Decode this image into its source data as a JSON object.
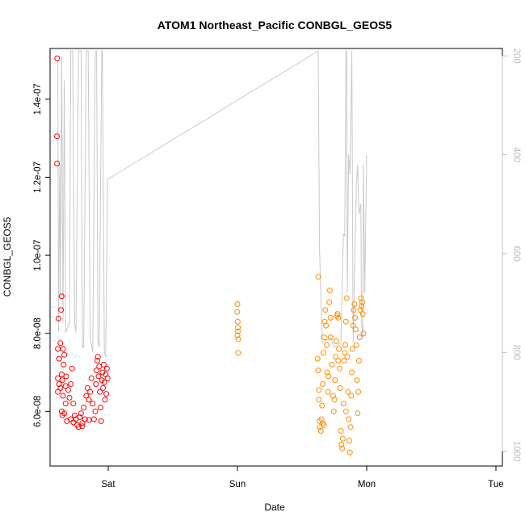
{
  "chart_data": {
    "type": "scatter",
    "title": "ATOM1 Northeast_Pacific CONBGL_GEOS5",
    "xlabel": "Date",
    "ylabel": "CONBGL_GEOS5",
    "x_ticks": [
      "Sat",
      "Sun",
      "Mon",
      "Tue"
    ],
    "x_range_days": [
      -0.45,
      3.05
    ],
    "y_ticks": [
      "6.0e-08",
      "8.0e-08",
      "1.0e-07",
      "1.2e-07",
      "1.4e-07"
    ],
    "y_tick_values": [
      6e-08,
      8e-08,
      1e-07,
      1.2e-07,
      1.4e-07
    ],
    "ylim": [
      4.6e-08,
      1.53e-07
    ],
    "y2_ticks": [
      "200",
      "400",
      "600",
      "800",
      "1000"
    ],
    "y2_tick_values": [
      200,
      400,
      600,
      800,
      1000
    ],
    "y2_lim_top_to_bottom": [
      185,
      1030
    ],
    "colors": {
      "series1": "#ff0000",
      "series2": "#ff8c00",
      "pressure": "#c8c8c8",
      "right_axis": "#bdbdbd"
    },
    "series": [
      {
        "color": "#ff0000",
        "points": [
          [
            -0.395,
            1.505e-07
          ],
          [
            -0.397,
            1.305e-07
          ],
          [
            -0.396,
            1.235e-07
          ],
          [
            -0.36,
            8.95e-08
          ],
          [
            -0.365,
            8.6e-08
          ],
          [
            -0.385,
            8.38e-08
          ],
          [
            -0.39,
            7.6e-08
          ],
          [
            -0.37,
            7.75e-08
          ],
          [
            -0.35,
            7.6e-08
          ],
          [
            -0.38,
            7.35e-08
          ],
          [
            -0.34,
            7.45e-08
          ],
          [
            -0.39,
            6.85e-08
          ],
          [
            -0.38,
            6.7e-08
          ],
          [
            -0.36,
            6.95e-08
          ],
          [
            -0.37,
            6.6e-08
          ],
          [
            -0.39,
            6.5e-08
          ],
          [
            -0.355,
            6.8e-08
          ],
          [
            -0.345,
            7.2e-08
          ],
          [
            -0.35,
            6.4e-08
          ],
          [
            -0.33,
            6.65e-08
          ],
          [
            -0.325,
            6.9e-08
          ],
          [
            -0.36,
            6e-08
          ],
          [
            -0.355,
            5.9e-08
          ],
          [
            -0.34,
            5.95e-08
          ],
          [
            -0.33,
            6.2e-08
          ],
          [
            -0.32,
            5.75e-08
          ],
          [
            -0.31,
            6.55e-08
          ],
          [
            -0.3,
            6.35e-08
          ],
          [
            -0.29,
            6.7e-08
          ],
          [
            -0.28,
            7.1e-08
          ],
          [
            -0.27,
            6.2e-08
          ],
          [
            -0.26,
            5.9e-08
          ],
          [
            -0.25,
            5.8e-08
          ],
          [
            -0.24,
            5.65e-08
          ],
          [
            -0.23,
            5.6e-08
          ],
          [
            -0.22,
            5.85e-08
          ],
          [
            -0.21,
            5.95e-08
          ],
          [
            -0.2,
            5.7e-08
          ],
          [
            -0.19,
            6.1e-08
          ],
          [
            -0.18,
            5.8e-08
          ],
          [
            -0.17,
            6.4e-08
          ],
          [
            -0.16,
            6.6e-08
          ],
          [
            -0.15,
            6.3e-08
          ],
          [
            -0.14,
            6.5e-08
          ],
          [
            -0.13,
            6.85e-08
          ],
          [
            -0.12,
            6.2e-08
          ],
          [
            -0.11,
            5.8e-08
          ],
          [
            -0.1,
            6e-08
          ],
          [
            -0.095,
            6.7e-08
          ],
          [
            -0.09,
            7.05e-08
          ],
          [
            -0.085,
            7.3e-08
          ],
          [
            -0.08,
            7.4e-08
          ],
          [
            -0.075,
            6.9e-08
          ],
          [
            -0.07,
            7.15e-08
          ],
          [
            -0.065,
            6.5e-08
          ],
          [
            -0.06,
            6.1e-08
          ],
          [
            -0.055,
            5.75e-08
          ],
          [
            -0.05,
            6.8e-08
          ],
          [
            -0.045,
            7e-08
          ],
          [
            -0.04,
            6.6e-08
          ],
          [
            -0.035,
            7.2e-08
          ],
          [
            -0.03,
            6.75e-08
          ],
          [
            -0.025,
            6.3e-08
          ],
          [
            -0.02,
            6.95e-08
          ],
          [
            -0.015,
            6.45e-08
          ],
          [
            -0.01,
            7.1e-08
          ],
          [
            -0.005,
            6.85e-08
          ],
          [
            -0.29,
            5.8e-08
          ],
          [
            -0.27,
            5.72e-08
          ],
          [
            -0.2,
            5.62e-08
          ],
          [
            -0.15,
            5.78e-08
          ]
        ]
      },
      {
        "color": "#ff8c00",
        "points": [
          [
            1.0,
            8.75e-08
          ],
          [
            0.998,
            8.55e-08
          ],
          [
            1.002,
            8.3e-08
          ],
          [
            1.004,
            8.15e-08
          ],
          [
            1.0,
            7.95e-08
          ],
          [
            1.006,
            7.85e-08
          ],
          [
            1.005,
            7.5e-08
          ],
          [
            1.003,
            8.05e-08
          ],
          [
            1.625,
            9.45e-08
          ],
          [
            1.62,
            7.35e-08
          ],
          [
            1.625,
            7.05e-08
          ],
          [
            1.63,
            6.55e-08
          ],
          [
            1.63,
            6.3e-08
          ],
          [
            1.635,
            5.75e-08
          ],
          [
            1.64,
            5.6e-08
          ],
          [
            1.645,
            5.5e-08
          ],
          [
            1.65,
            5.8e-08
          ],
          [
            1.655,
            6.15e-08
          ],
          [
            1.66,
            6.7e-08
          ],
          [
            1.665,
            7.5e-08
          ],
          [
            1.67,
            7.9e-08
          ],
          [
            1.675,
            8.3e-08
          ],
          [
            1.68,
            8.6e-08
          ],
          [
            1.685,
            8.2e-08
          ],
          [
            1.69,
            7.7e-08
          ],
          [
            1.695,
            7e-08
          ],
          [
            1.7,
            6.5e-08
          ],
          [
            1.705,
            6.9e-08
          ],
          [
            1.71,
            8.8e-08
          ],
          [
            1.715,
            9.1e-08
          ],
          [
            1.72,
            8.4e-08
          ],
          [
            1.73,
            7.2e-08
          ],
          [
            1.74,
            6.4e-08
          ],
          [
            1.745,
            6e-08
          ],
          [
            1.75,
            6.3e-08
          ],
          [
            1.755,
            6.8e-08
          ],
          [
            1.76,
            7.4e-08
          ],
          [
            1.765,
            7.8e-08
          ],
          [
            1.77,
            8.45e-08
          ],
          [
            1.775,
            8.5e-08
          ],
          [
            1.78,
            8.4e-08
          ],
          [
            1.785,
            7.6e-08
          ],
          [
            1.79,
            7.1e-08
          ],
          [
            1.795,
            6.6e-08
          ],
          [
            1.8,
            5.5e-08
          ],
          [
            1.805,
            5.15e-08
          ],
          [
            1.81,
            5.05e-08
          ],
          [
            1.815,
            5.3e-08
          ],
          [
            1.82,
            6.2e-08
          ],
          [
            1.825,
            7.3e-08
          ],
          [
            1.83,
            7.5e-08
          ],
          [
            1.835,
            7.7e-08
          ],
          [
            1.84,
            8.3e-08
          ],
          [
            1.845,
            8.9e-08
          ],
          [
            1.85,
            7.4e-08
          ],
          [
            1.855,
            6.5e-08
          ],
          [
            1.86,
            5.8e-08
          ],
          [
            1.865,
            5.25e-08
          ],
          [
            1.87,
            4.95e-08
          ],
          [
            1.875,
            5.6e-08
          ],
          [
            1.88,
            6.4e-08
          ],
          [
            1.885,
            7e-08
          ],
          [
            1.89,
            7.6e-08
          ],
          [
            1.895,
            8.2e-08
          ],
          [
            1.9,
            8.6e-08
          ],
          [
            1.905,
            8.75e-08
          ],
          [
            1.91,
            8.4e-08
          ],
          [
            1.915,
            8.1e-08
          ],
          [
            1.92,
            7.7e-08
          ],
          [
            1.925,
            6.8e-08
          ],
          [
            1.93,
            5.95e-08
          ],
          [
            1.935,
            6.5e-08
          ],
          [
            1.94,
            7.3e-08
          ],
          [
            1.945,
            7.9e-08
          ],
          [
            1.95,
            8.6e-08
          ],
          [
            1.955,
            8.9e-08
          ],
          [
            1.96,
            8.7e-08
          ],
          [
            1.965,
            8.8e-08
          ],
          [
            1.97,
            8.5e-08
          ],
          [
            1.975,
            8e-08
          ],
          [
            1.66,
            5.7e-08
          ],
          [
            1.67,
            5.65e-08
          ],
          [
            1.72,
            7.9e-08
          ],
          [
            1.78,
            7.3e-08
          ],
          [
            1.84,
            6e-08
          ]
        ]
      }
    ],
    "pressure_line": [
      [
        -0.39,
        210
      ],
      [
        -0.385,
        760
      ],
      [
        -0.375,
        420
      ],
      [
        -0.37,
        690
      ],
      [
        -0.36,
        200
      ],
      [
        -0.35,
        740
      ],
      [
        -0.34,
        250
      ],
      [
        -0.33,
        760
      ],
      [
        -0.3,
        740
      ],
      [
        -0.29,
        190
      ],
      [
        -0.275,
        190
      ],
      [
        -0.26,
        740
      ],
      [
        -0.25,
        760
      ],
      [
        -0.23,
        190
      ],
      [
        -0.21,
        190
      ],
      [
        -0.2,
        790
      ],
      [
        -0.19,
        790
      ],
      [
        -0.17,
        190
      ],
      [
        -0.155,
        190
      ],
      [
        -0.14,
        770
      ],
      [
        -0.12,
        800
      ],
      [
        -0.1,
        190
      ],
      [
        -0.09,
        190
      ],
      [
        -0.08,
        775
      ],
      [
        -0.07,
        790
      ],
      [
        -0.05,
        190
      ],
      [
        -0.045,
        190
      ],
      [
        -0.03,
        800
      ],
      [
        -0.02,
        810
      ],
      [
        -0.005,
        450
      ],
      [
        1.625,
        190
      ],
      [
        1.635,
        590
      ],
      [
        1.655,
        780
      ],
      [
        1.72,
        770
      ],
      [
        1.75,
        790
      ],
      [
        1.8,
        780
      ],
      [
        1.82,
        560
      ],
      [
        1.83,
        565
      ],
      [
        1.84,
        190
      ],
      [
        1.845,
        190
      ],
      [
        1.85,
        680
      ],
      [
        1.86,
        400
      ],
      [
        1.87,
        440
      ],
      [
        1.885,
        190
      ],
      [
        1.895,
        780
      ],
      [
        1.92,
        460
      ],
      [
        1.93,
        420
      ],
      [
        1.94,
        520
      ],
      [
        1.955,
        500
      ],
      [
        1.96,
        740
      ],
      [
        1.97,
        770
      ],
      [
        1.975,
        420
      ],
      [
        1.985,
        680
      ],
      [
        2.0,
        400
      ]
    ]
  }
}
